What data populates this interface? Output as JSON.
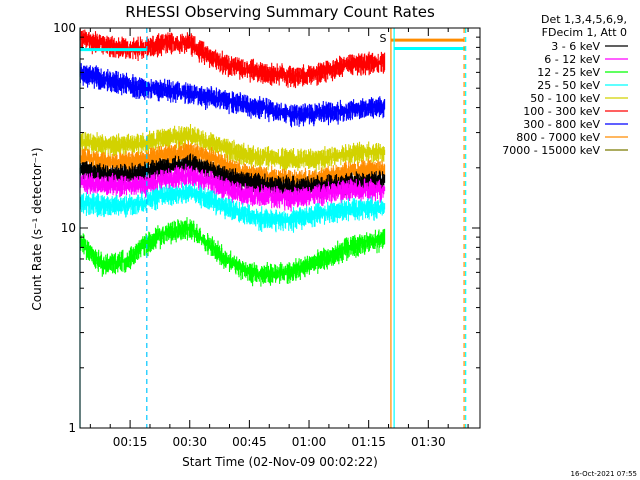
{
  "chart_data": {
    "type": "line",
    "title": "RHESSI Observing Summary Count Rates",
    "xlabel": "Start Time (02-Nov-09 00:02:22)",
    "ylabel": "Count Rate (s⁻¹ detector⁻¹)",
    "y_scale": "log",
    "ylim": [
      1,
      100
    ],
    "xlim_minutes": [
      2.4,
      103.0
    ],
    "x_tick_labels": [
      "00:15",
      "00:30",
      "00:45",
      "01:00",
      "01:15",
      "01:30"
    ],
    "x_ticks_minutes": [
      15,
      30,
      45,
      60,
      75,
      90
    ],
    "y_tick_labels": [
      "1",
      "10",
      "100"
    ],
    "y_ticks": [
      1,
      10,
      100
    ],
    "grid": false,
    "legend_position": "right",
    "legend_header": [
      "Det 1,3,4,5,6,9,",
      "FDecim 1, Att 0"
    ],
    "flag_marker": "S",
    "footer_timestamp": "16-Oct-2021 07:55",
    "data_gap_minutes": [
      79.7,
      103.0
    ],
    "vertical_markers_minutes": [
      {
        "x": 2.4,
        "color": "#00ffff",
        "style": "solid"
      },
      {
        "x": 19.2,
        "color": "#00c8ff",
        "style": "dashed"
      },
      {
        "x": 80.6,
        "color": "#ff8c00",
        "style": "solid"
      },
      {
        "x": 81.4,
        "color": "#00ffff",
        "style": "solid"
      },
      {
        "x": 99.0,
        "color": "#ff8c00",
        "style": "dashed"
      },
      {
        "x": 99.4,
        "color": "#00ffff",
        "style": "dashed"
      }
    ],
    "series": [
      {
        "name": "3 - 6 keV",
        "color": "#000000",
        "x": [
          2.4,
          8,
          14,
          19,
          23,
          30,
          35,
          40,
          45,
          50,
          55,
          60,
          65,
          70,
          75,
          79
        ],
        "y": [
          19.5,
          18.5,
          18.5,
          19,
          20,
          21,
          19.5,
          17.5,
          17,
          16.5,
          16,
          16,
          16.5,
          17,
          17,
          17.5
        ]
      },
      {
        "name": "6 - 12 keV",
        "color": "#ff00ff",
        "x": [
          2.4,
          8,
          14,
          19,
          23,
          30,
          35,
          40,
          45,
          50,
          55,
          60,
          65,
          70,
          75,
          79
        ],
        "y": [
          17,
          16.5,
          16.5,
          16.5,
          17.5,
          18.5,
          17,
          15.5,
          14.5,
          14.5,
          14,
          14.5,
          15,
          15.5,
          15.5,
          15.5
        ]
      },
      {
        "name": "12 - 25 keV",
        "color": "#00ff00",
        "x": [
          2.4,
          5,
          8,
          12,
          15,
          19,
          24,
          30,
          35,
          40,
          45,
          50,
          55,
          60,
          65,
          70,
          75,
          79
        ],
        "y": [
          8.6,
          7.5,
          6.6,
          6.7,
          7,
          8.3,
          9.5,
          10,
          8.2,
          6.8,
          6,
          5.9,
          6,
          6.6,
          7.2,
          8,
          8.6,
          8.8
        ]
      },
      {
        "name": "25 - 50 keV",
        "color": "#00ffff",
        "x": [
          2.4,
          8,
          14,
          19,
          23,
          30,
          35,
          40,
          45,
          50,
          55,
          60,
          65,
          70,
          75,
          79
        ],
        "y": [
          13.5,
          13,
          13,
          13.5,
          14.5,
          15,
          14,
          12.5,
          11.5,
          11,
          11,
          11.5,
          12,
          12.5,
          12.5,
          12.5
        ]
      },
      {
        "name": "50 - 100 keV",
        "color": "#d2d200",
        "x": [
          2.4,
          8,
          14,
          19,
          23,
          30,
          35,
          40,
          45,
          50,
          55,
          60,
          65,
          70,
          75,
          79
        ],
        "y": [
          27,
          26,
          26,
          26.5,
          28,
          29,
          27,
          24.5,
          23,
          22.5,
          22,
          22,
          22.5,
          23.5,
          24,
          24
        ]
      },
      {
        "name": "100 - 300 keV",
        "color": "#ff0000",
        "x": [
          2.4,
          6,
          10,
          15,
          19,
          24,
          30,
          35,
          40,
          45,
          50,
          55,
          60,
          65,
          70,
          75,
          79
        ],
        "y": [
          90,
          85,
          81,
          79,
          80,
          84,
          84,
          72,
          65,
          62,
          59,
          58,
          58,
          62,
          66,
          67,
          67
        ]
      },
      {
        "name": "300 - 800 keV",
        "color": "#0000ff",
        "x": [
          2.4,
          6,
          10,
          15,
          19,
          24,
          30,
          35,
          40,
          45,
          50,
          55,
          60,
          65,
          70,
          75,
          79
        ],
        "y": [
          60,
          57,
          55,
          52,
          50,
          49,
          47,
          45,
          43,
          41,
          39,
          37,
          37,
          38,
          39,
          40,
          40
        ]
      },
      {
        "name": "800 - 7000 keV",
        "color": "#ff8c00",
        "x": [
          2.4,
          8,
          14,
          19,
          23,
          30,
          35,
          40,
          45,
          50,
          55,
          60,
          65,
          70,
          75,
          79
        ],
        "y": [
          22.5,
          21.5,
          21.5,
          22,
          23,
          24,
          22.5,
          20,
          18.5,
          18,
          17.5,
          17.5,
          18,
          19,
          19.5,
          19.5
        ]
      },
      {
        "name": "7000 - 15000 keV",
        "color": "#7a7a00",
        "x": [],
        "y": []
      }
    ],
    "flat_segments": [
      {
        "series": "800 - 7000 keV",
        "x": [
          80.6,
          99.0
        ],
        "y": 87
      },
      {
        "series": "25 - 50 keV",
        "x": [
          81.4,
          99.4
        ],
        "y": 79
      },
      {
        "series": "25 - 50 keV",
        "x": [
          2.4,
          19.2
        ],
        "y": 78
      }
    ]
  }
}
